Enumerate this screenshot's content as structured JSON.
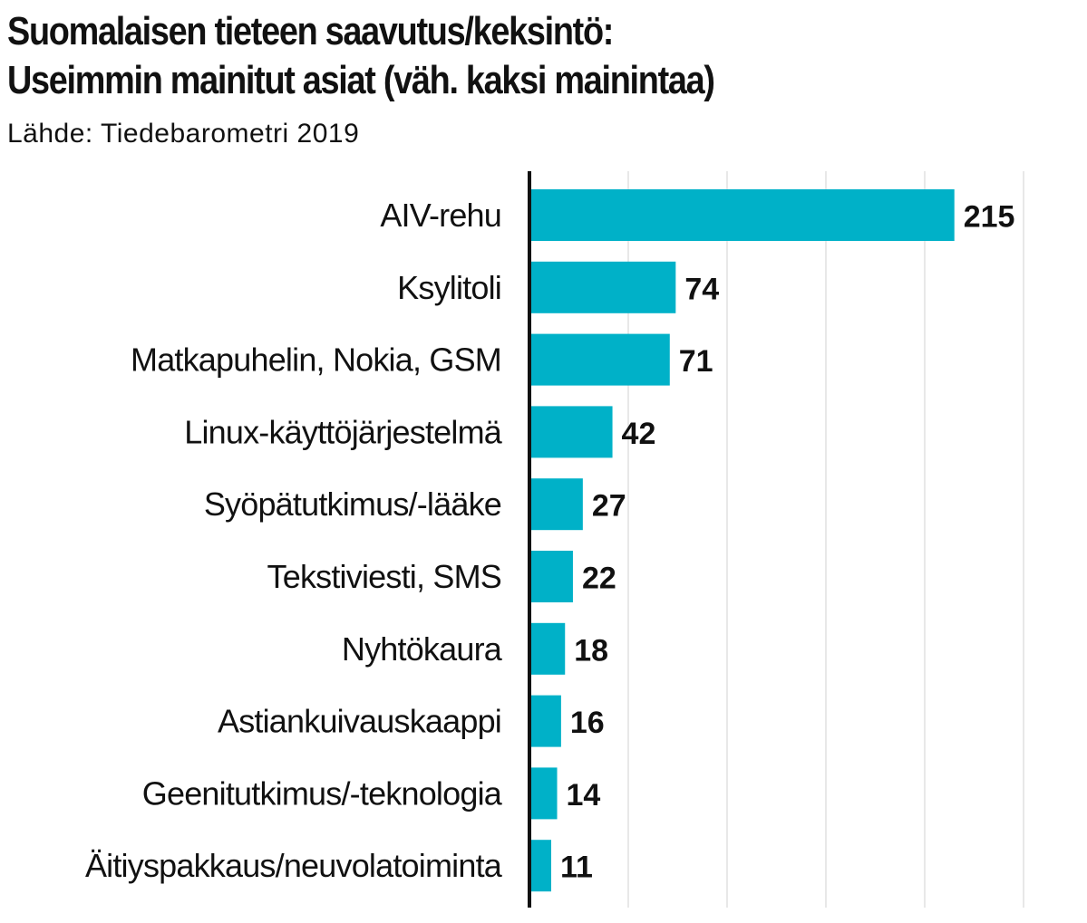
{
  "chart_data": {
    "type": "bar",
    "orientation": "horizontal",
    "title_lines": [
      "Suomalaisen tieteen saavutus/keksintö:",
      "Useimmin mainitut asiat (väh. kaksi mainintaa)"
    ],
    "source": "Lähde: Tiedebarometri 2019",
    "categories": [
      "AIV-rehu",
      "Ksylitoli",
      "Matkapuhelin, Nokia, GSM",
      "Linux-käyttöjärjestelmä",
      "Syöpätutkimus/-lääke",
      "Tekstiviesti, SMS",
      "Nyhtökaura",
      "Astiankuivauskaappi",
      "Geenitutkimus/-teknologia",
      "Äitiyspakkaus/neuvolatoiminta"
    ],
    "values": [
      215,
      74,
      71,
      42,
      27,
      22,
      18,
      16,
      14,
      11
    ],
    "xlim": [
      0,
      250
    ],
    "gridlines": [
      50,
      100,
      150,
      200,
      250
    ],
    "bar_color": "#00b1c8",
    "grid_color": "#e0e0e0",
    "axis_color": "#111111"
  }
}
